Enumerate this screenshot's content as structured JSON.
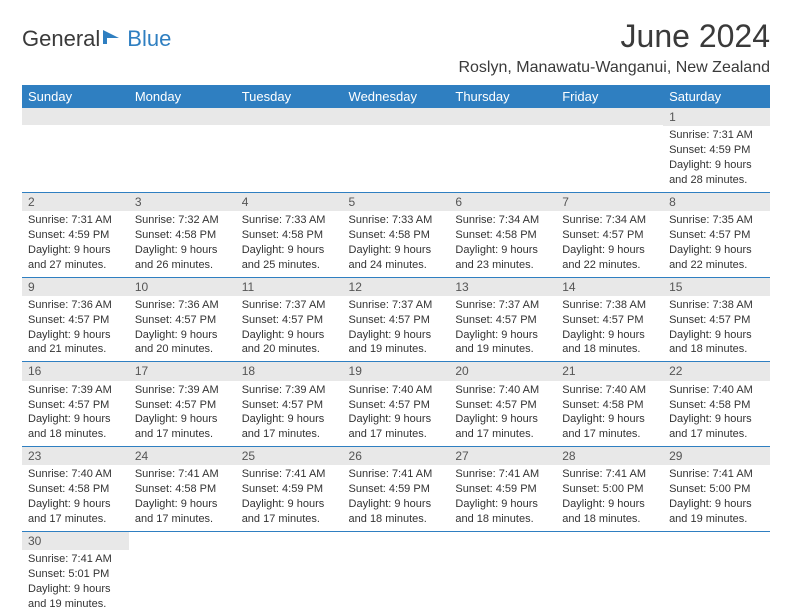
{
  "logo": {
    "part1": "General",
    "part2": "Blue"
  },
  "title": "June 2024",
  "location": "Roslyn, Manawatu-Wanganui, New Zealand",
  "columns": [
    "Sunday",
    "Monday",
    "Tuesday",
    "Wednesday",
    "Thursday",
    "Friday",
    "Saturday"
  ],
  "colors": {
    "header_bg": "#2f7fc1",
    "header_text": "#ffffff",
    "daynum_bg": "#e8e8e8",
    "rule": "#2f7fc1",
    "body_text": "#333333",
    "page_bg": "#ffffff"
  },
  "typography": {
    "title_fontsize": 32,
    "location_fontsize": 16,
    "th_fontsize": 13,
    "daynum_fontsize": 12,
    "cell_fontsize": 11
  },
  "weeks": [
    [
      null,
      null,
      null,
      null,
      null,
      null,
      {
        "n": "1",
        "sunrise": "Sunrise: 7:31 AM",
        "sunset": "Sunset: 4:59 PM",
        "d1": "Daylight: 9 hours",
        "d2": "and 28 minutes."
      }
    ],
    [
      {
        "n": "2",
        "sunrise": "Sunrise: 7:31 AM",
        "sunset": "Sunset: 4:59 PM",
        "d1": "Daylight: 9 hours",
        "d2": "and 27 minutes."
      },
      {
        "n": "3",
        "sunrise": "Sunrise: 7:32 AM",
        "sunset": "Sunset: 4:58 PM",
        "d1": "Daylight: 9 hours",
        "d2": "and 26 minutes."
      },
      {
        "n": "4",
        "sunrise": "Sunrise: 7:33 AM",
        "sunset": "Sunset: 4:58 PM",
        "d1": "Daylight: 9 hours",
        "d2": "and 25 minutes."
      },
      {
        "n": "5",
        "sunrise": "Sunrise: 7:33 AM",
        "sunset": "Sunset: 4:58 PM",
        "d1": "Daylight: 9 hours",
        "d2": "and 24 minutes."
      },
      {
        "n": "6",
        "sunrise": "Sunrise: 7:34 AM",
        "sunset": "Sunset: 4:58 PM",
        "d1": "Daylight: 9 hours",
        "d2": "and 23 minutes."
      },
      {
        "n": "7",
        "sunrise": "Sunrise: 7:34 AM",
        "sunset": "Sunset: 4:57 PM",
        "d1": "Daylight: 9 hours",
        "d2": "and 22 minutes."
      },
      {
        "n": "8",
        "sunrise": "Sunrise: 7:35 AM",
        "sunset": "Sunset: 4:57 PM",
        "d1": "Daylight: 9 hours",
        "d2": "and 22 minutes."
      }
    ],
    [
      {
        "n": "9",
        "sunrise": "Sunrise: 7:36 AM",
        "sunset": "Sunset: 4:57 PM",
        "d1": "Daylight: 9 hours",
        "d2": "and 21 minutes."
      },
      {
        "n": "10",
        "sunrise": "Sunrise: 7:36 AM",
        "sunset": "Sunset: 4:57 PM",
        "d1": "Daylight: 9 hours",
        "d2": "and 20 minutes."
      },
      {
        "n": "11",
        "sunrise": "Sunrise: 7:37 AM",
        "sunset": "Sunset: 4:57 PM",
        "d1": "Daylight: 9 hours",
        "d2": "and 20 minutes."
      },
      {
        "n": "12",
        "sunrise": "Sunrise: 7:37 AM",
        "sunset": "Sunset: 4:57 PM",
        "d1": "Daylight: 9 hours",
        "d2": "and 19 minutes."
      },
      {
        "n": "13",
        "sunrise": "Sunrise: 7:37 AM",
        "sunset": "Sunset: 4:57 PM",
        "d1": "Daylight: 9 hours",
        "d2": "and 19 minutes."
      },
      {
        "n": "14",
        "sunrise": "Sunrise: 7:38 AM",
        "sunset": "Sunset: 4:57 PM",
        "d1": "Daylight: 9 hours",
        "d2": "and 18 minutes."
      },
      {
        "n": "15",
        "sunrise": "Sunrise: 7:38 AM",
        "sunset": "Sunset: 4:57 PM",
        "d1": "Daylight: 9 hours",
        "d2": "and 18 minutes."
      }
    ],
    [
      {
        "n": "16",
        "sunrise": "Sunrise: 7:39 AM",
        "sunset": "Sunset: 4:57 PM",
        "d1": "Daylight: 9 hours",
        "d2": "and 18 minutes."
      },
      {
        "n": "17",
        "sunrise": "Sunrise: 7:39 AM",
        "sunset": "Sunset: 4:57 PM",
        "d1": "Daylight: 9 hours",
        "d2": "and 17 minutes."
      },
      {
        "n": "18",
        "sunrise": "Sunrise: 7:39 AM",
        "sunset": "Sunset: 4:57 PM",
        "d1": "Daylight: 9 hours",
        "d2": "and 17 minutes."
      },
      {
        "n": "19",
        "sunrise": "Sunrise: 7:40 AM",
        "sunset": "Sunset: 4:57 PM",
        "d1": "Daylight: 9 hours",
        "d2": "and 17 minutes."
      },
      {
        "n": "20",
        "sunrise": "Sunrise: 7:40 AM",
        "sunset": "Sunset: 4:57 PM",
        "d1": "Daylight: 9 hours",
        "d2": "and 17 minutes."
      },
      {
        "n": "21",
        "sunrise": "Sunrise: 7:40 AM",
        "sunset": "Sunset: 4:58 PM",
        "d1": "Daylight: 9 hours",
        "d2": "and 17 minutes."
      },
      {
        "n": "22",
        "sunrise": "Sunrise: 7:40 AM",
        "sunset": "Sunset: 4:58 PM",
        "d1": "Daylight: 9 hours",
        "d2": "and 17 minutes."
      }
    ],
    [
      {
        "n": "23",
        "sunrise": "Sunrise: 7:40 AM",
        "sunset": "Sunset: 4:58 PM",
        "d1": "Daylight: 9 hours",
        "d2": "and 17 minutes."
      },
      {
        "n": "24",
        "sunrise": "Sunrise: 7:41 AM",
        "sunset": "Sunset: 4:58 PM",
        "d1": "Daylight: 9 hours",
        "d2": "and 17 minutes."
      },
      {
        "n": "25",
        "sunrise": "Sunrise: 7:41 AM",
        "sunset": "Sunset: 4:59 PM",
        "d1": "Daylight: 9 hours",
        "d2": "and 17 minutes."
      },
      {
        "n": "26",
        "sunrise": "Sunrise: 7:41 AM",
        "sunset": "Sunset: 4:59 PM",
        "d1": "Daylight: 9 hours",
        "d2": "and 18 minutes."
      },
      {
        "n": "27",
        "sunrise": "Sunrise: 7:41 AM",
        "sunset": "Sunset: 4:59 PM",
        "d1": "Daylight: 9 hours",
        "d2": "and 18 minutes."
      },
      {
        "n": "28",
        "sunrise": "Sunrise: 7:41 AM",
        "sunset": "Sunset: 5:00 PM",
        "d1": "Daylight: 9 hours",
        "d2": "and 18 minutes."
      },
      {
        "n": "29",
        "sunrise": "Sunrise: 7:41 AM",
        "sunset": "Sunset: 5:00 PM",
        "d1": "Daylight: 9 hours",
        "d2": "and 19 minutes."
      }
    ],
    [
      {
        "n": "30",
        "sunrise": "Sunrise: 7:41 AM",
        "sunset": "Sunset: 5:01 PM",
        "d1": "Daylight: 9 hours",
        "d2": "and 19 minutes."
      },
      null,
      null,
      null,
      null,
      null,
      null
    ]
  ]
}
